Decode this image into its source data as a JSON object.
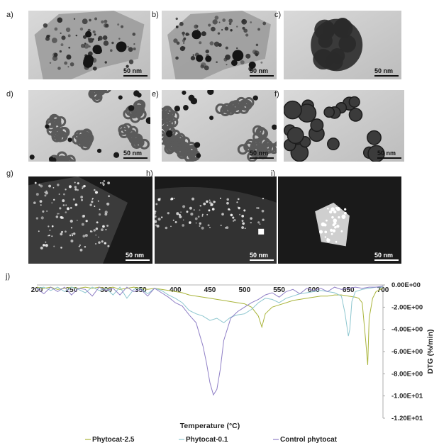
{
  "figure": {
    "panels": [
      {
        "letter": "a)",
        "scale": "50 nm",
        "kind": "tem-sheet"
      },
      {
        "letter": "b)",
        "scale": "50 nm",
        "kind": "tem-sheet"
      },
      {
        "letter": "c)",
        "scale": "50 nm",
        "kind": "tem-cluster"
      },
      {
        "letter": "d)",
        "scale": "50 nm",
        "kind": "tem-chains"
      },
      {
        "letter": "e)",
        "scale": "50 nm",
        "kind": "tem-chains"
      },
      {
        "letter": "f)",
        "scale": "50 nm",
        "kind": "tem-spheres"
      },
      {
        "letter": "g)",
        "scale": "50 nm",
        "kind": "haadf-dots"
      },
      {
        "letter": "h)",
        "scale": "50 nm",
        "kind": "haadf-band"
      },
      {
        "letter": "i)",
        "scale": "50 nm",
        "kind": "haadf-cluster"
      }
    ],
    "chart_letter": "j)"
  },
  "chart_data": {
    "type": "line",
    "xlabel": "Temperature (°C)",
    "ylabel": "DTG (%/min)",
    "x_ticks": [
      "200",
      "250",
      "300",
      "350",
      "400",
      "450",
      "500",
      "550",
      "600",
      "650",
      "700"
    ],
    "xlim": [
      200,
      700
    ],
    "y_ticks": [
      "0.00E+00",
      "-2.00E+00",
      "-4.00E+00",
      "-6.00E+00",
      "-8.00E+00",
      "-1.00E+01",
      "-1.20E+01"
    ],
    "ylim": [
      -12,
      0
    ],
    "series": [
      {
        "name": "Phytocat-2.5",
        "color": "#a9b43a",
        "x": [
          200,
          210,
          220,
          230,
          240,
          250,
          260,
          270,
          280,
          290,
          300,
          310,
          320,
          330,
          340,
          350,
          360,
          370,
          380,
          390,
          400,
          410,
          420,
          430,
          440,
          450,
          460,
          470,
          480,
          490,
          500,
          510,
          520,
          525,
          530,
          540,
          550,
          560,
          570,
          580,
          590,
          600,
          610,
          620,
          630,
          640,
          650,
          660,
          665,
          670,
          675,
          678,
          680,
          685,
          690,
          700
        ],
        "y": [
          -0.2,
          -0.3,
          -0.2,
          -0.4,
          -0.3,
          -0.2,
          -0.3,
          -0.2,
          -0.3,
          -0.2,
          -0.3,
          -0.2,
          -0.4,
          -0.3,
          -0.2,
          -0.3,
          -0.4,
          -0.3,
          -0.4,
          -0.5,
          -0.6,
          -0.7,
          -0.9,
          -1.0,
          -1.1,
          -1.2,
          -1.3,
          -1.4,
          -1.5,
          -1.6,
          -1.7,
          -2.0,
          -2.8,
          -3.8,
          -2.6,
          -2.0,
          -1.8,
          -1.6,
          -1.4,
          -1.3,
          -1.2,
          -1.1,
          -1.0,
          -1.0,
          -0.9,
          -0.9,
          -1.0,
          -1.1,
          -1.2,
          -1.6,
          -5.0,
          -7.2,
          -3.0,
          -1.2,
          -0.6,
          -0.3
        ]
      },
      {
        "name": "Phytocat-0.1",
        "color": "#8cc6cf",
        "x": [
          200,
          210,
          220,
          230,
          240,
          250,
          260,
          270,
          280,
          290,
          300,
          310,
          320,
          330,
          340,
          350,
          360,
          370,
          380,
          390,
          400,
          410,
          420,
          430,
          440,
          450,
          460,
          470,
          480,
          490,
          500,
          510,
          520,
          530,
          540,
          550,
          560,
          570,
          580,
          590,
          600,
          610,
          620,
          630,
          640,
          645,
          650,
          652,
          655,
          660,
          670,
          680,
          690,
          700
        ],
        "y": [
          -0.3,
          -0.2,
          -0.5,
          -0.2,
          -0.6,
          -0.2,
          -0.4,
          -0.7,
          -0.2,
          -0.5,
          -0.3,
          -0.9,
          -0.2,
          -1.2,
          -0.4,
          -0.3,
          -0.8,
          -0.3,
          -0.5,
          -0.9,
          -1.2,
          -1.6,
          -2.3,
          -2.6,
          -2.8,
          -3.2,
          -3.0,
          -3.4,
          -2.9,
          -2.7,
          -2.6,
          -2.2,
          -1.6,
          -1.2,
          -1.3,
          -1.6,
          -1.2,
          -1.0,
          -0.8,
          -0.7,
          -0.6,
          -0.5,
          -0.6,
          -0.7,
          -1.0,
          -2.5,
          -4.6,
          -4.0,
          -1.5,
          -0.6,
          -0.4,
          -0.3,
          -0.2,
          -0.2
        ]
      },
      {
        "name": "Control phytocat",
        "color": "#8f7fc6",
        "x": [
          200,
          210,
          220,
          230,
          240,
          250,
          260,
          270,
          280,
          290,
          300,
          310,
          320,
          330,
          340,
          350,
          360,
          370,
          380,
          390,
          400,
          410,
          420,
          430,
          440,
          445,
          450,
          455,
          460,
          465,
          470,
          480,
          490,
          500,
          510,
          520,
          530,
          540,
          550,
          560,
          570,
          580,
          590,
          600,
          610,
          620,
          630,
          640,
          650,
          660,
          670,
          680,
          690,
          700
        ],
        "y": [
          -0.3,
          -0.8,
          -0.2,
          -0.6,
          -0.2,
          -0.9,
          -0.3,
          -0.4,
          -1.0,
          -0.2,
          -0.5,
          -0.3,
          -0.9,
          -0.2,
          -0.6,
          -0.4,
          -1.0,
          -0.3,
          -0.7,
          -1.1,
          -1.6,
          -1.9,
          -2.7,
          -3.4,
          -5.5,
          -7.0,
          -8.8,
          -9.9,
          -9.4,
          -7.6,
          -5.0,
          -3.0,
          -2.4,
          -2.0,
          -1.6,
          -1.3,
          -0.9,
          -0.7,
          -1.1,
          -0.6,
          -0.4,
          -0.8,
          -0.3,
          -0.5,
          -0.3,
          -0.6,
          -0.2,
          -0.4,
          -0.3,
          -0.2,
          -0.3,
          -0.2,
          -0.2,
          -0.1
        ]
      }
    ]
  }
}
